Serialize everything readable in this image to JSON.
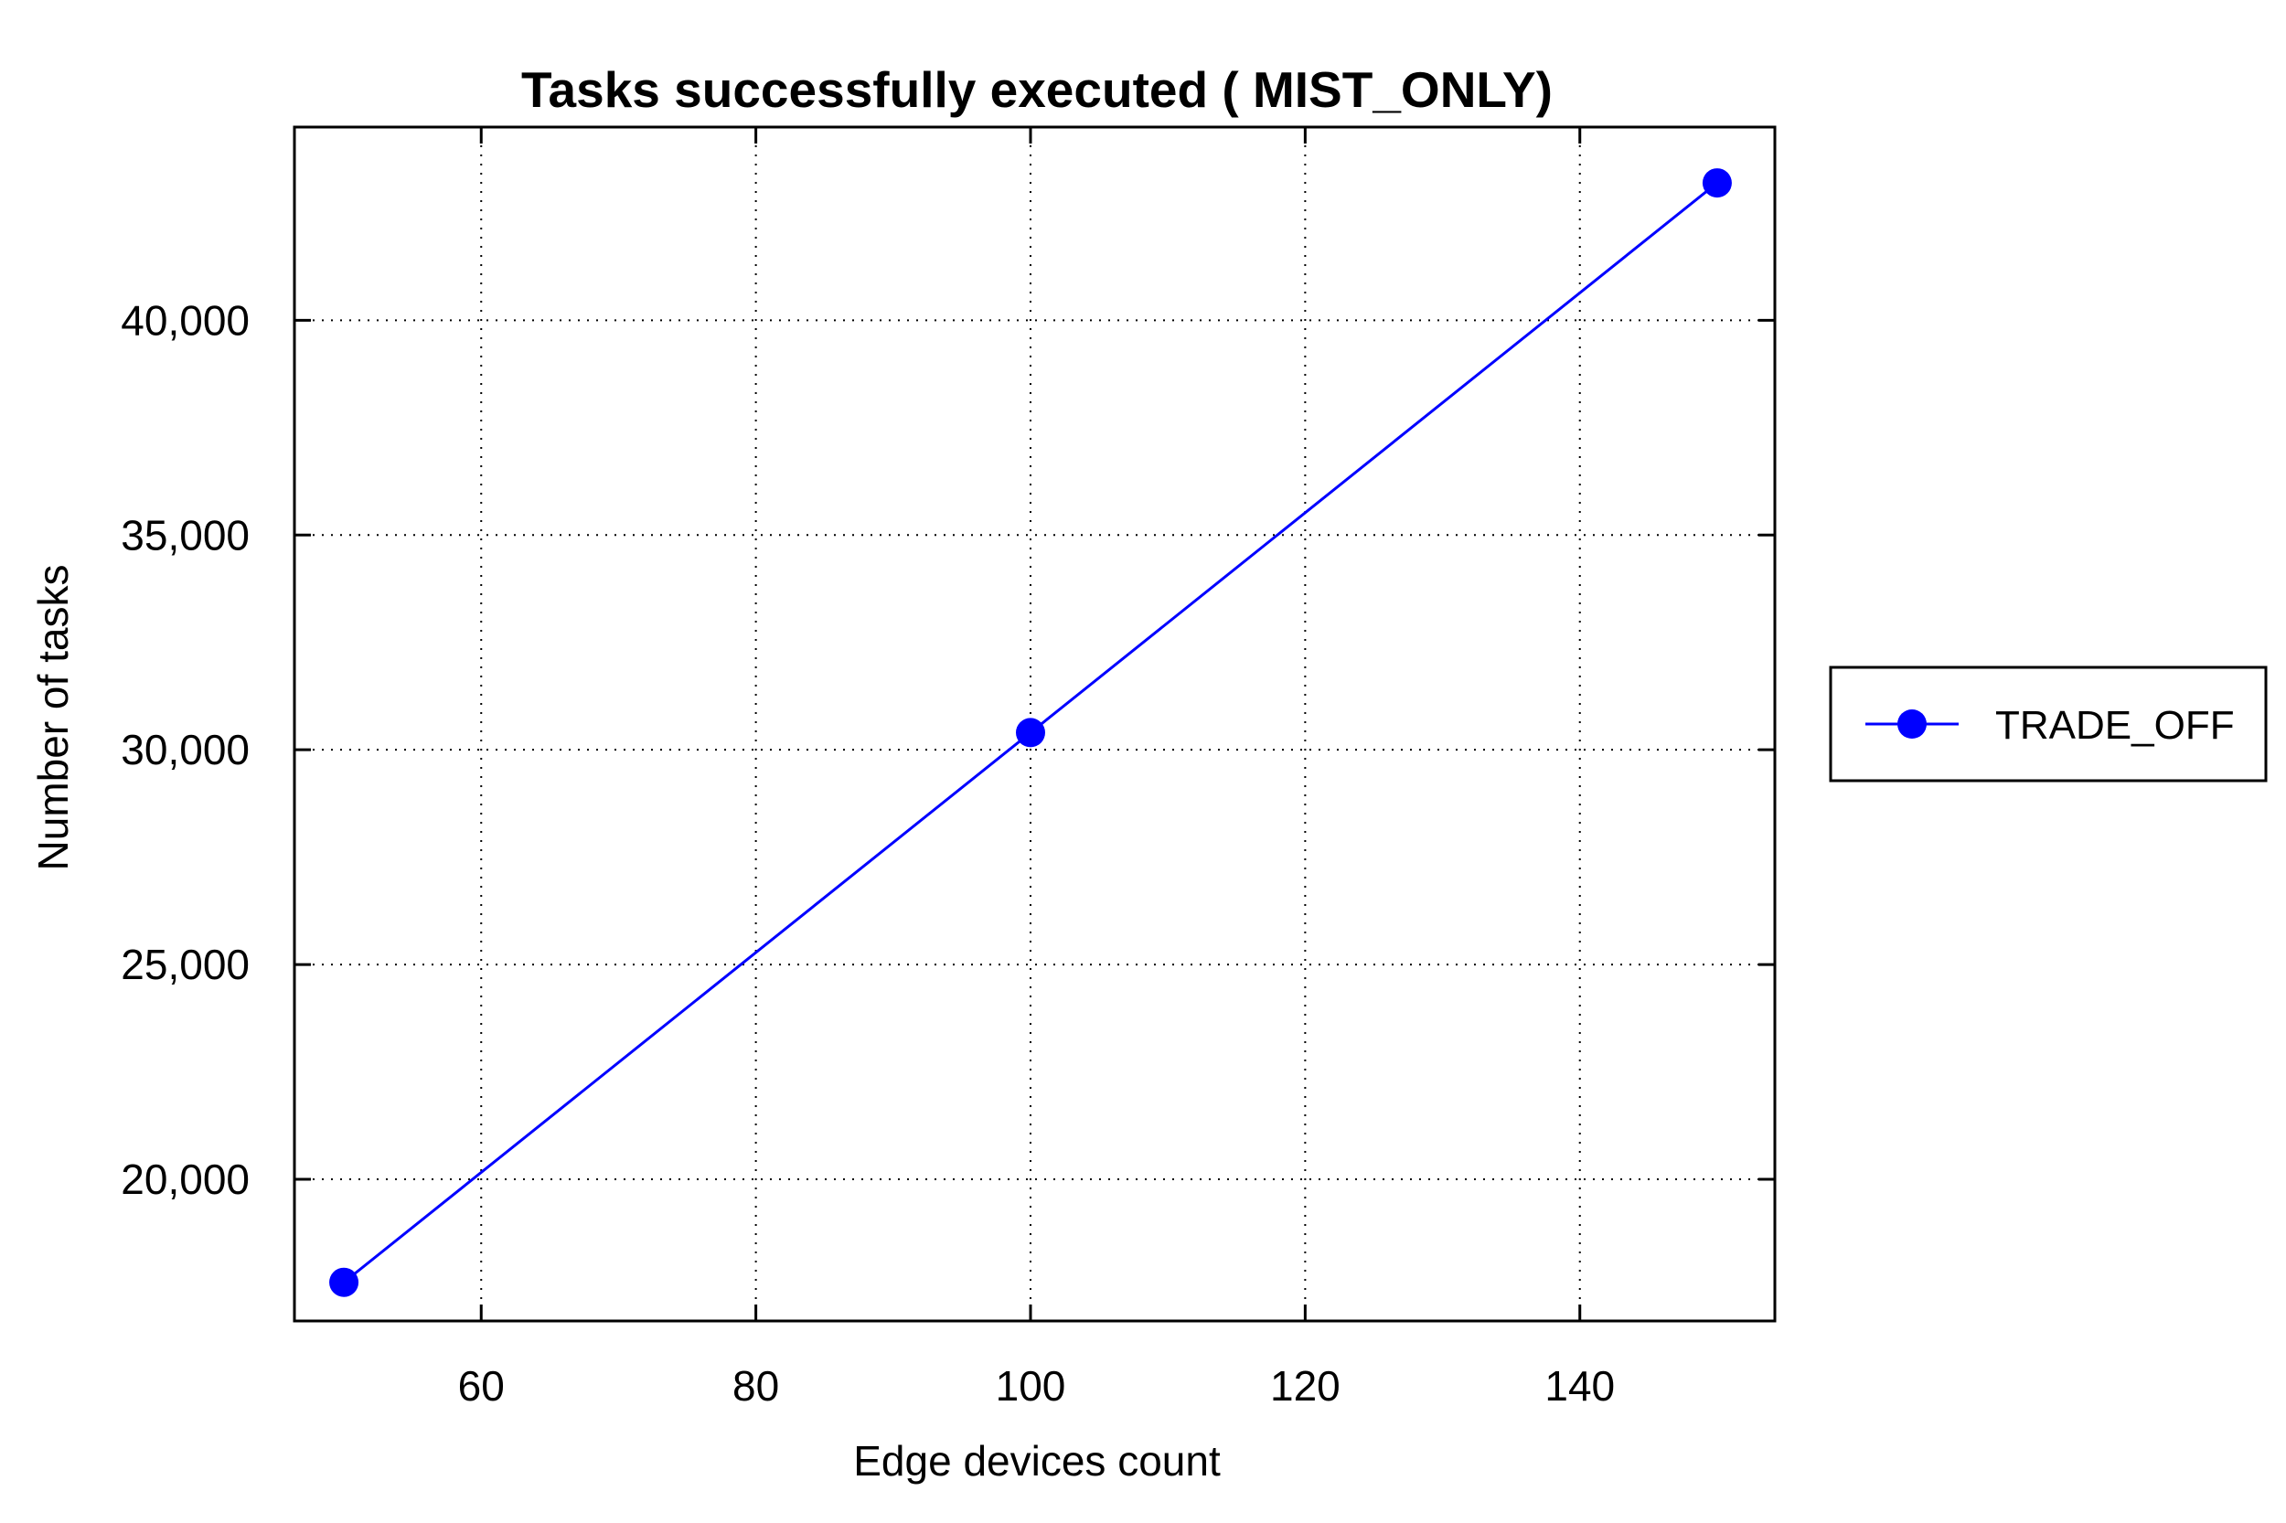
{
  "chart_data": {
    "type": "line",
    "title": "Tasks successfully executed ( MIST_ONLY)",
    "xlabel": "Edge devices count",
    "ylabel": "Number of tasks",
    "xlim": [
      46.4,
      154.2
    ],
    "ylim": [
      16700,
      44500
    ],
    "xticks": [
      60,
      80,
      100,
      120,
      140
    ],
    "xtick_labels": [
      "60",
      "80",
      "100",
      "120",
      "140"
    ],
    "yticks": [
      20000,
      25000,
      30000,
      35000,
      40000
    ],
    "ytick_labels": [
      "20,000",
      "25,000",
      "30,000",
      "35,000",
      "40,000"
    ],
    "grid": true,
    "legend_position": "right",
    "series": [
      {
        "name": "TRADE_OFF",
        "color": "#0000ff",
        "marker": "circle",
        "x": [
          50,
          100,
          150
        ],
        "y": [
          17600,
          30400,
          43200
        ]
      }
    ]
  }
}
